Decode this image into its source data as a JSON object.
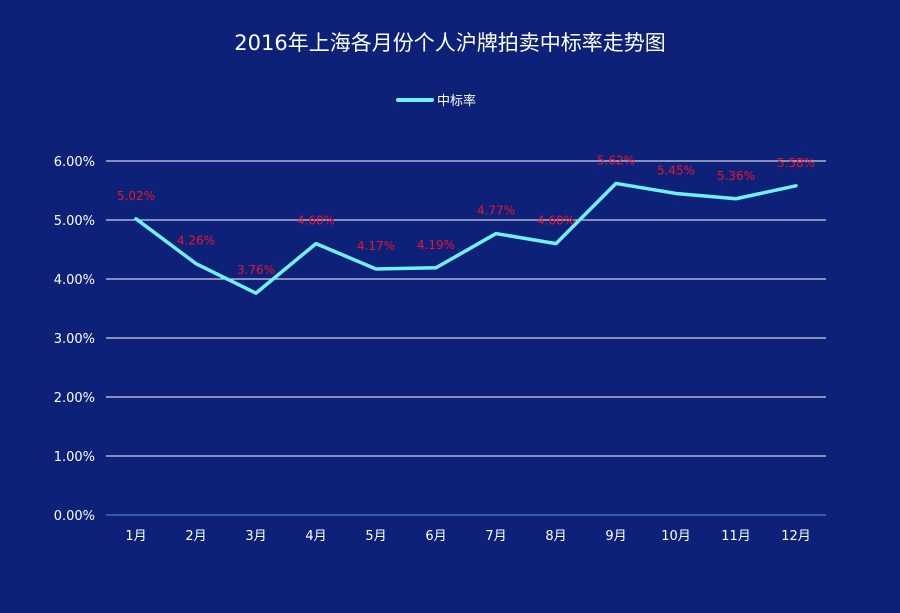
{
  "chart_data": {
    "type": "line",
    "title": "2016年上海各月份个人沪牌拍卖中标率走势图",
    "categories": [
      "1月",
      "2月",
      "3月",
      "4月",
      "5月",
      "6月",
      "7月",
      "8月",
      "9月",
      "10月",
      "11月",
      "12月"
    ],
    "series": [
      {
        "name": "中标率",
        "values": [
          5.02,
          4.26,
          3.76,
          4.6,
          4.17,
          4.19,
          4.77,
          4.6,
          5.62,
          5.45,
          5.36,
          5.58
        ],
        "labels": [
          "5.02%",
          "4.26%",
          "3.76%",
          "4.60%",
          "4.17%",
          "4.19%",
          "4.77%",
          "4.60%",
          "5.62%",
          "5.45%",
          "5.36%",
          "5.58%"
        ],
        "color": "#6ff2fb"
      }
    ],
    "ylim": [
      0,
      6
    ],
    "yticks": [
      0,
      1,
      2,
      3,
      4,
      5,
      6
    ],
    "ytick_labels": [
      "0.00%",
      "1.00%",
      "2.00%",
      "3.00%",
      "4.00%",
      "5.00%",
      "6.00%"
    ],
    "grid": true,
    "legend_position": "top-center",
    "colors": {
      "background": "#0e2178",
      "label": "#e8152c",
      "grid": "#ffffff",
      "axis": "#4d7ad6"
    }
  }
}
